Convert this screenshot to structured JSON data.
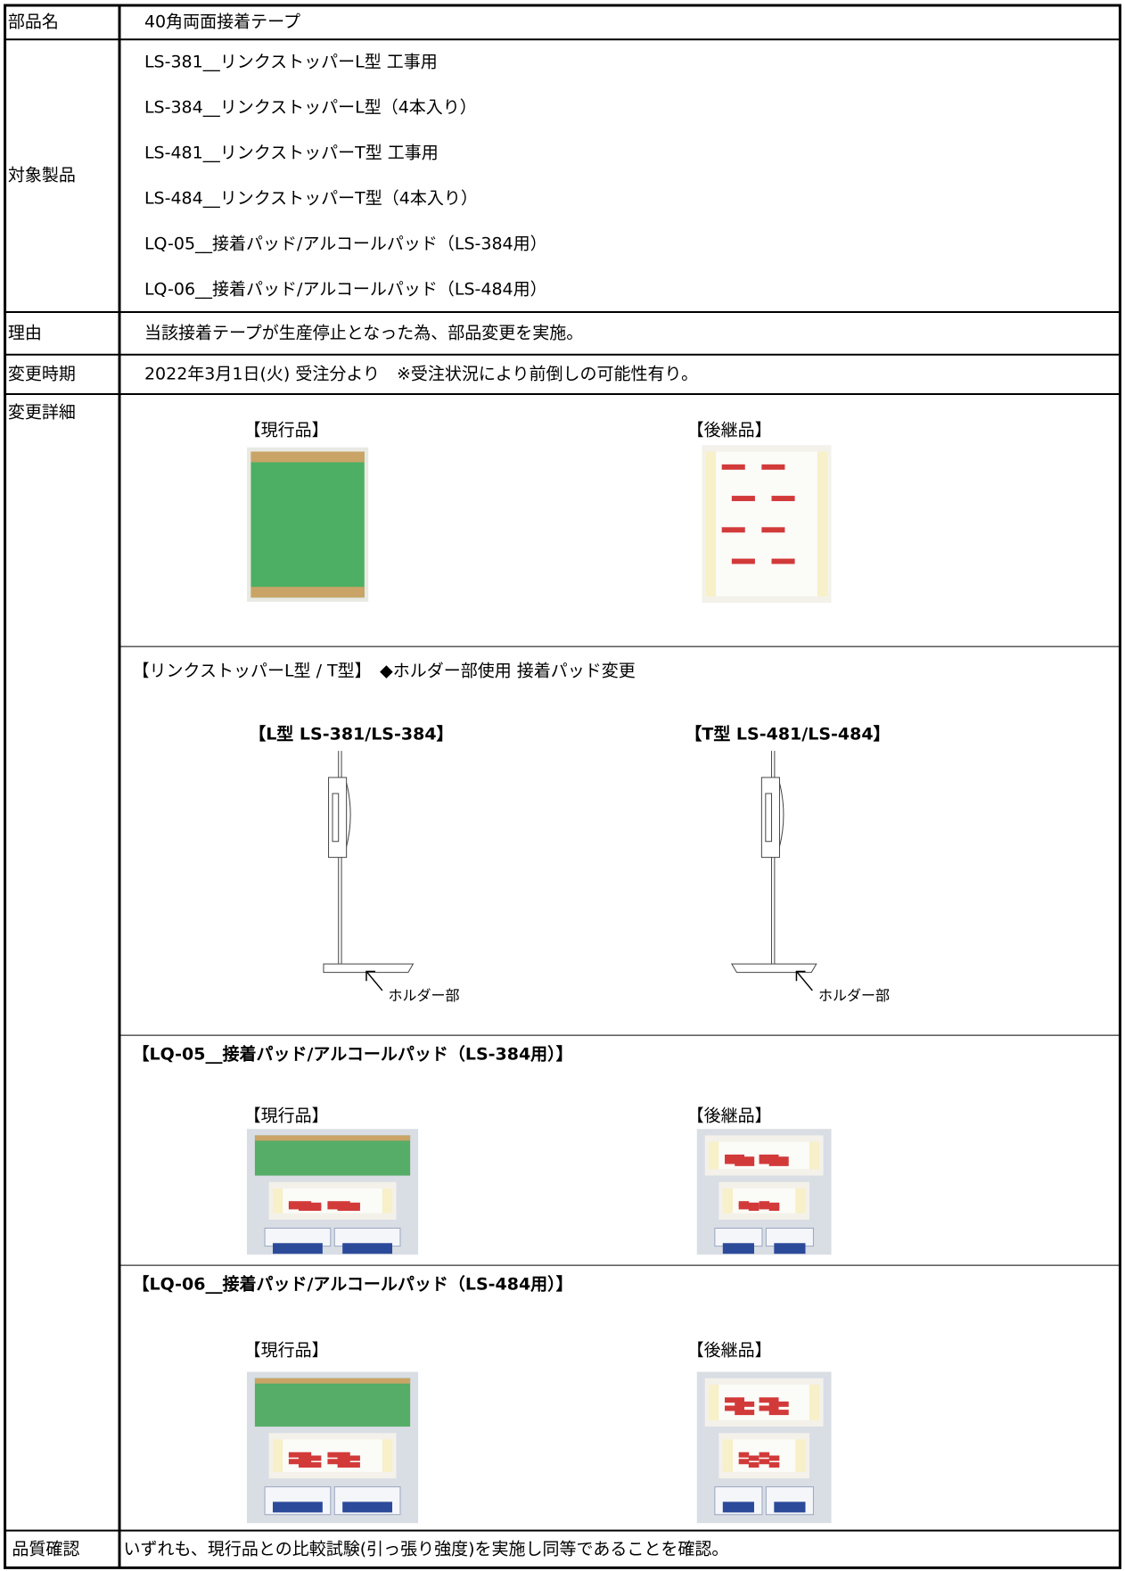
{
  "table": {
    "rows": [
      {
        "label": "部品名",
        "lines": [
          "40角両面接着テープ"
        ]
      },
      {
        "label": "対象製品",
        "lines": [
          "LS-381__リンクストッパーL型 工事用",
          "LS-384__リンクストッパーL型（4本入り）",
          "LS-481__リンクストッパーT型 工事用",
          "LS-484__リンクストッパーT型（4本入り）",
          "LQ-05__接着パッド/アルコールパッド（LS-384用）",
          "LQ-06__接着パッド/アルコールパッド（LS-484用）"
        ]
      },
      {
        "label": "理由",
        "lines": [
          "当該接着テープが生産停止となった為、部品変更を実施。"
        ]
      },
      {
        "label": "変更時期",
        "lines": [
          "2022年3月1日(火) 受注分より　※受注状況により前倒しの可能性有り。"
        ]
      },
      {
        "label": "変更詳細",
        "sections": [
          {
            "items": [
              {
                "caption": "【現行品】"
              },
              {
                "caption": "【後継品】"
              }
            ]
          },
          {
            "heading": "【リンクストッパーL型 / T型】　◆ホルダー部使用 接着パッド変更",
            "items": [
              {
                "caption": "【L型 LS-381/LS-384】",
                "callout": "ホルダー部"
              },
              {
                "caption": "【T型 LS-481/LS-484】",
                "callout": "ホルダー部"
              }
            ]
          },
          {
            "heading": "【LQ-05__接着パッド/アルコールパッド（LS-384用）】",
            "items": [
              {
                "caption": "【現行品】"
              },
              {
                "caption": "【後継品】"
              }
            ]
          },
          {
            "heading": "【LQ-06__接着パッド/アルコールパッド（LS-484用）】",
            "items": [
              {
                "caption": "【現行品】"
              },
              {
                "caption": "【後継品】"
              }
            ]
          }
        ]
      },
      {
        "label": "品質確認",
        "lines": [
          "いずれも、現行品との比較試験(引っ張り強度)を実施し同等であることを確認。"
        ]
      }
    ]
  }
}
